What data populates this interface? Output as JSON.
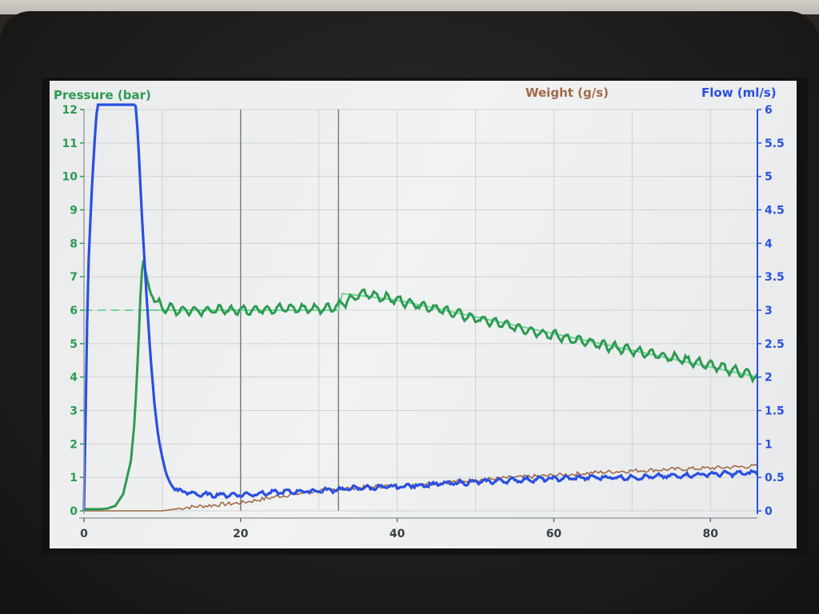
{
  "chart_data": {
    "type": "line",
    "title": "",
    "left_axis": {
      "label": "Pressure (bar)",
      "range": [
        0,
        12
      ],
      "ticks": [
        0,
        1,
        2,
        3,
        4,
        5,
        6,
        7,
        8,
        9,
        10,
        11,
        12
      ],
      "color": "#2e9a52"
    },
    "right_axis": {
      "label": "Flow (ml/s)",
      "range": [
        0,
        6
      ],
      "ticks": [
        "0",
        "0.5",
        "1",
        "1.5",
        "2",
        "2.5",
        "3",
        "3.5",
        "4",
        "4.5",
        "5",
        "5.5",
        "6"
      ],
      "color": "#2a50e0"
    },
    "weight_label": "Weight (g/s)",
    "weight_color": "#a06a48",
    "x_axis": {
      "range": [
        0,
        86
      ],
      "ticks": [
        0,
        20,
        40,
        60,
        80
      ]
    },
    "grid": true,
    "markers_x": [
      20,
      32.5
    ],
    "series": [
      {
        "name": "Pressure (bar)",
        "axis": "left",
        "color": "#2e9a52",
        "points": [
          [
            0,
            0.05
          ],
          [
            2,
            0.05
          ],
          [
            3,
            0.07
          ],
          [
            4,
            0.15
          ],
          [
            5,
            0.5
          ],
          [
            6,
            1.5
          ],
          [
            6.5,
            2.8
          ],
          [
            7,
            5.2
          ],
          [
            7.3,
            7.0
          ],
          [
            7.6,
            7.5
          ],
          [
            8,
            7.0
          ],
          [
            8.5,
            6.5
          ],
          [
            9,
            6.3
          ],
          [
            10,
            6.1
          ],
          [
            12,
            6.0
          ],
          [
            15,
            6.0
          ],
          [
            20,
            6.0
          ],
          [
            25,
            6.05
          ],
          [
            30,
            6.05
          ],
          [
            32,
            6.1
          ],
          [
            34,
            6.3
          ],
          [
            35.5,
            6.5
          ],
          [
            37,
            6.45
          ],
          [
            40,
            6.3
          ],
          [
            45,
            6.05
          ],
          [
            50,
            5.75
          ],
          [
            55,
            5.5
          ],
          [
            60,
            5.25
          ],
          [
            65,
            5.0
          ],
          [
            70,
            4.8
          ],
          [
            75,
            4.6
          ],
          [
            80,
            4.35
          ],
          [
            84,
            4.15
          ],
          [
            86,
            4.0
          ]
        ]
      },
      {
        "name": "Pressure target",
        "axis": "left",
        "color": "#6fd69a",
        "dashed_until": 7,
        "points": [
          [
            0,
            6.0
          ],
          [
            7,
            6.0
          ],
          [
            10,
            6.0
          ],
          [
            32.5,
            6.0
          ],
          [
            33,
            6.5
          ],
          [
            40,
            6.3
          ],
          [
            50,
            5.8
          ],
          [
            60,
            5.3
          ],
          [
            70,
            4.8
          ],
          [
            80,
            4.3
          ],
          [
            86,
            4.0
          ]
        ]
      },
      {
        "name": "Flow (ml/s)",
        "axis": "right",
        "color": "#2a50e0",
        "points": [
          [
            0,
            0
          ],
          [
            0.5,
            3.5
          ],
          [
            1,
            4.8
          ],
          [
            1.5,
            5.8
          ],
          [
            1.8,
            6.2
          ],
          [
            6.5,
            6.2
          ],
          [
            6.9,
            5.6
          ],
          [
            7.4,
            4.4
          ],
          [
            8,
            3.2
          ],
          [
            8.5,
            2.3
          ],
          [
            9,
            1.6
          ],
          [
            9.5,
            1.1
          ],
          [
            10,
            0.8
          ],
          [
            10.5,
            0.55
          ],
          [
            11,
            0.42
          ],
          [
            12,
            0.3
          ],
          [
            15,
            0.24
          ],
          [
            20,
            0.24
          ],
          [
            25,
            0.28
          ],
          [
            30,
            0.3
          ],
          [
            35,
            0.34
          ],
          [
            40,
            0.36
          ],
          [
            45,
            0.4
          ],
          [
            50,
            0.43
          ],
          [
            55,
            0.46
          ],
          [
            60,
            0.48
          ],
          [
            65,
            0.5
          ],
          [
            70,
            0.5
          ],
          [
            75,
            0.52
          ],
          [
            80,
            0.55
          ],
          [
            84,
            0.56
          ],
          [
            86,
            0.57
          ]
        ]
      },
      {
        "name": "Weight (g/s)",
        "axis": "right",
        "color": "#a06a48",
        "points": [
          [
            0,
            0.0
          ],
          [
            10,
            0.0
          ],
          [
            13,
            0.05
          ],
          [
            16,
            0.08
          ],
          [
            18,
            0.1
          ],
          [
            20,
            0.12
          ],
          [
            22,
            0.16
          ],
          [
            25,
            0.22
          ],
          [
            30,
            0.3
          ],
          [
            35,
            0.35
          ],
          [
            40,
            0.38
          ],
          [
            45,
            0.42
          ],
          [
            50,
            0.46
          ],
          [
            55,
            0.5
          ],
          [
            60,
            0.53
          ],
          [
            65,
            0.57
          ],
          [
            70,
            0.6
          ],
          [
            75,
            0.62
          ],
          [
            80,
            0.64
          ],
          [
            84,
            0.66
          ],
          [
            86,
            0.67
          ]
        ]
      }
    ]
  }
}
